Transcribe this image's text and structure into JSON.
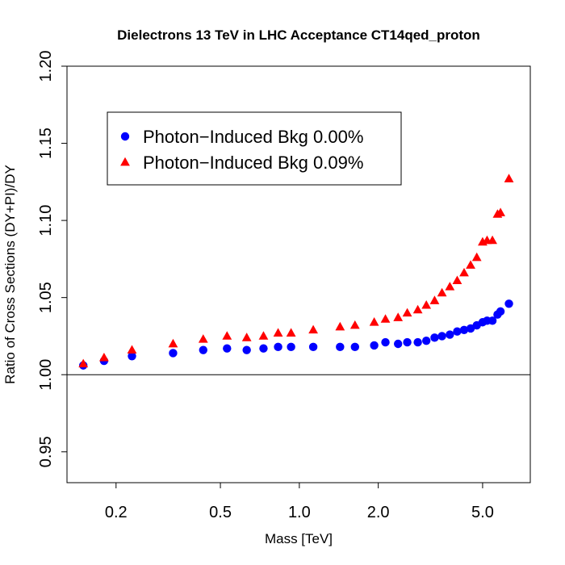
{
  "chart_data": {
    "type": "scatter",
    "title": "Dielectrons 13 TeV in LHC Acceptance CT14qed_proton",
    "xlabel": "Mass [TeV]",
    "ylabel": "Ratio of Cross Sections (DY+PI)/DY",
    "x_scale": "log",
    "xlim": [
      0.13,
      7.6
    ],
    "ylim": [
      0.93,
      1.2
    ],
    "x_ticks": [
      0.2,
      0.5,
      1.0,
      2.0,
      5.0
    ],
    "x_tick_labels": [
      "0.2",
      "0.5",
      "1.0",
      "2.0",
      "5.0"
    ],
    "y_ticks": [
      0.95,
      1.0,
      1.05,
      1.1,
      1.15,
      1.2
    ],
    "y_tick_labels": [
      "0.95",
      "1.00",
      "1.05",
      "1.10",
      "1.15",
      "1.20"
    ],
    "reference_line": 1.0,
    "legend_position": "top-left",
    "series": [
      {
        "name": "Photon−Induced Bkg 0.00%",
        "marker": "circle",
        "color": "#0000ff",
        "x": [
          0.15,
          0.18,
          0.23,
          0.33,
          0.43,
          0.53,
          0.63,
          0.73,
          0.83,
          0.93,
          1.13,
          1.43,
          1.63,
          1.93,
          2.13,
          2.38,
          2.58,
          2.83,
          3.05,
          3.28,
          3.5,
          3.75,
          4.0,
          4.25,
          4.5,
          4.75,
          5.0,
          5.2,
          5.45,
          5.7,
          5.85,
          6.3
        ],
        "y": [
          1.006,
          1.009,
          1.012,
          1.014,
          1.016,
          1.017,
          1.016,
          1.017,
          1.018,
          1.018,
          1.018,
          1.018,
          1.018,
          1.019,
          1.021,
          1.02,
          1.021,
          1.021,
          1.022,
          1.024,
          1.025,
          1.026,
          1.028,
          1.029,
          1.03,
          1.032,
          1.034,
          1.035,
          1.035,
          1.039,
          1.041,
          1.046
        ]
      },
      {
        "name": "Photon−Induced Bkg 0.09%",
        "marker": "triangle",
        "color": "#ff0000",
        "x": [
          0.15,
          0.18,
          0.23,
          0.33,
          0.43,
          0.53,
          0.63,
          0.73,
          0.83,
          0.93,
          1.13,
          1.43,
          1.63,
          1.93,
          2.13,
          2.38,
          2.58,
          2.83,
          3.05,
          3.28,
          3.5,
          3.75,
          4.0,
          4.25,
          4.5,
          4.75,
          5.0,
          5.2,
          5.45,
          5.7,
          5.85,
          6.3
        ],
        "y": [
          1.007,
          1.011,
          1.016,
          1.02,
          1.023,
          1.025,
          1.024,
          1.025,
          1.027,
          1.027,
          1.029,
          1.031,
          1.032,
          1.034,
          1.036,
          1.037,
          1.04,
          1.042,
          1.045,
          1.048,
          1.053,
          1.057,
          1.061,
          1.066,
          1.071,
          1.076,
          1.086,
          1.087,
          1.087,
          1.104,
          1.105,
          1.127
        ]
      }
    ]
  }
}
